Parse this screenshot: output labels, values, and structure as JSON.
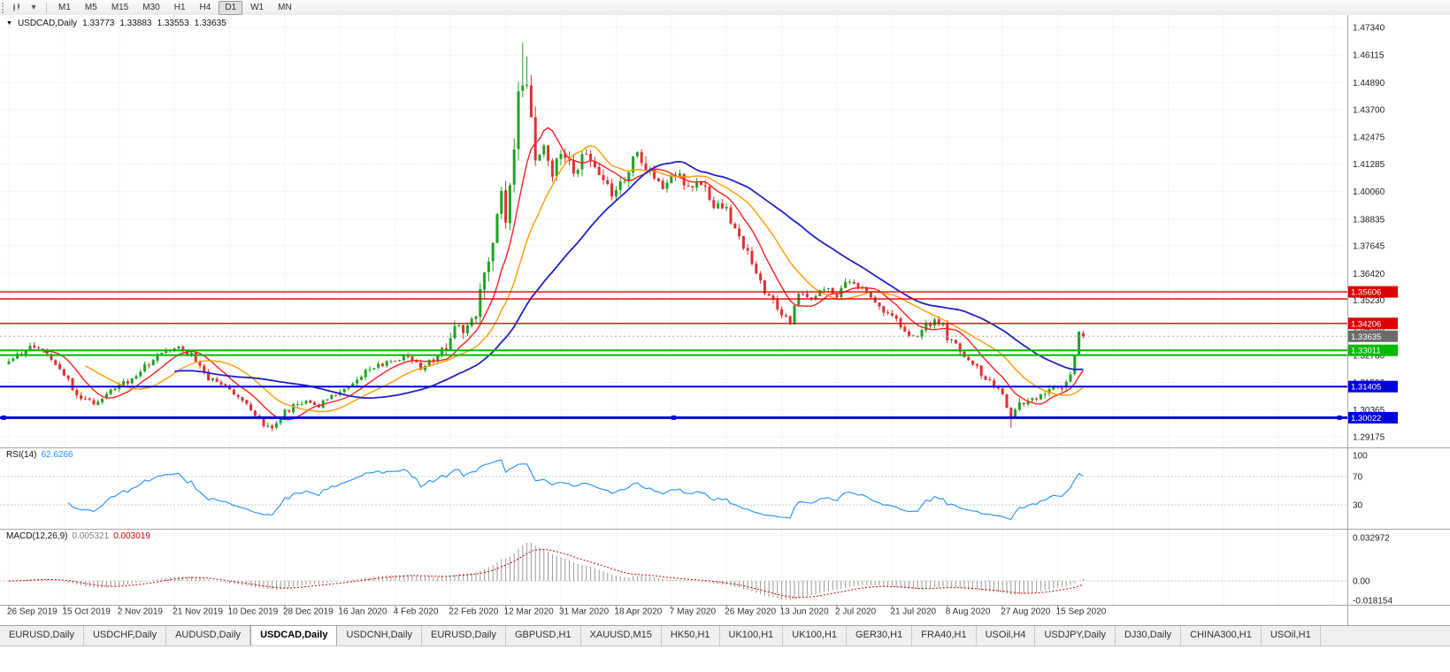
{
  "toolbar": {
    "icons": [
      "chart-type-icon",
      "dropdown-icon"
    ],
    "timeframes": [
      "M1",
      "M5",
      "M15",
      "M30",
      "H1",
      "H4",
      "D1",
      "W1",
      "MN"
    ],
    "active_timeframe": "D1"
  },
  "chart": {
    "symbol_label": "USDCAD,Daily",
    "ohlc": {
      "open": "1.33773",
      "high": "1.33883",
      "low": "1.33553",
      "close": "1.33635"
    },
    "price_axis_labels": [
      "1.47340",
      "1.46115",
      "1.44890",
      "1.43700",
      "1.42475",
      "1.41285",
      "1.40060",
      "1.38835",
      "1.37645",
      "1.36420",
      "1.35230",
      "1.34005",
      "1.32780",
      "1.31590",
      "1.30365",
      "1.29175"
    ],
    "current_price": {
      "label": "1.33635",
      "price": 1.33635,
      "badge_color": "#6b6b6b"
    },
    "hlines": [
      {
        "price": 1.35606,
        "label": "1.35606",
        "color": "#dd0000",
        "width": 1.4
      },
      {
        "price": 1.3529,
        "color": "#dd0000",
        "width": 1.4
      },
      {
        "price": 1.34206,
        "label": "1.34206",
        "color": "#dd0000",
        "width": 1.4
      },
      {
        "price": 1.33011,
        "label": "1.33011",
        "color": "#00bb00",
        "width": 2
      },
      {
        "price": 1.328,
        "color": "#00bb00",
        "width": 2
      },
      {
        "price": 1.31405,
        "label": "1.31405",
        "color": "#0000dd",
        "width": 2
      },
      {
        "price": 1.30022,
        "label": "1.30022",
        "color": "#0000dd",
        "width": 3,
        "handles": true
      }
    ],
    "date_labels": [
      "26 Sep 2019",
      "15 Oct 2019",
      "2 Nov 2019",
      "21 Nov 2019",
      "10 Dec 2019",
      "28 Dec 2019",
      "16 Jan 2020",
      "4 Feb 2020",
      "22 Feb 2020",
      "12 Mar 2020",
      "31 Mar 2020",
      "18 Apr 2020",
      "7 May 2020",
      "26 May 2020",
      "13 Jun 2020",
      "2 Jul 2020",
      "21 Jul 2020",
      "8 Aug 2020",
      "27 Aug 2020",
      "15 Sep 2020"
    ]
  },
  "chart_data": {
    "type": "candlestick",
    "symbol": "USDCAD",
    "timeframe": "Daily",
    "price_axis_range": [
      1.29175,
      1.4734
    ],
    "price_path": [
      [
        0,
        1.3245
      ],
      [
        3,
        1.3292
      ],
      [
        6,
        1.332
      ],
      [
        9,
        1.3288
      ],
      [
        13,
        1.32
      ],
      [
        16,
        1.3105
      ],
      [
        20,
        1.3058
      ],
      [
        24,
        1.312
      ],
      [
        28,
        1.3165
      ],
      [
        32,
        1.3228
      ],
      [
        36,
        1.3288
      ],
      [
        40,
        1.3308
      ],
      [
        43,
        1.3282
      ],
      [
        47,
        1.3175
      ],
      [
        51,
        1.3152
      ],
      [
        55,
        1.3082
      ],
      [
        59,
        1.2985
      ],
      [
        62,
        1.2958
      ],
      [
        65,
        1.303
      ],
      [
        69,
        1.3072
      ],
      [
        73,
        1.3058
      ],
      [
        77,
        1.3105
      ],
      [
        81,
        1.3162
      ],
      [
        85,
        1.322
      ],
      [
        89,
        1.3242
      ],
      [
        93,
        1.3278
      ],
      [
        97,
        1.3225
      ],
      [
        100,
        1.3262
      ],
      [
        103,
        1.3325
      ],
      [
        105,
        1.3428
      ],
      [
        107,
        1.3392
      ],
      [
        109,
        1.3418
      ],
      [
        111,
        1.3528
      ],
      [
        113,
        1.3688
      ],
      [
        114,
        1.3808
      ],
      [
        115,
        1.3928
      ],
      [
        116,
        1.4048
      ],
      [
        117,
        1.3892
      ],
      [
        118,
        1.4008
      ],
      [
        119,
        1.4238
      ],
      [
        120,
        1.4448
      ],
      [
        121,
        1.4452
      ],
      [
        122,
        1.4488
      ],
      [
        123,
        1.4328
      ],
      [
        124,
        1.4108
      ],
      [
        126,
        1.4242
      ],
      [
        128,
        1.4092
      ],
      [
        130,
        1.4168
      ],
      [
        133,
        1.4098
      ],
      [
        136,
        1.4182
      ],
      [
        139,
        1.4088
      ],
      [
        142,
        1.3982
      ],
      [
        145,
        1.4072
      ],
      [
        148,
        1.4178
      ],
      [
        151,
        1.4098
      ],
      [
        154,
        1.4012
      ],
      [
        157,
        1.4088
      ],
      [
        160,
        1.4032
      ],
      [
        163,
        1.4052
      ],
      [
        166,
        1.3952
      ],
      [
        169,
        1.3918
      ],
      [
        172,
        1.3812
      ],
      [
        175,
        1.3682
      ],
      [
        178,
        1.3562
      ],
      [
        181,
        1.3492
      ],
      [
        184,
        1.3422
      ],
      [
        186,
        1.3558
      ],
      [
        189,
        1.3528
      ],
      [
        192,
        1.3582
      ],
      [
        195,
        1.3552
      ],
      [
        198,
        1.3608
      ],
      [
        200,
        1.3588
      ],
      [
        202,
        1.3552
      ],
      [
        204,
        1.3508
      ],
      [
        206,
        1.3472
      ],
      [
        208,
        1.3448
      ],
      [
        210,
        1.3412
      ],
      [
        212,
        1.3372
      ],
      [
        214,
        1.3358
      ],
      [
        216,
        1.3408
      ],
      [
        218,
        1.3432
      ],
      [
        220,
        1.3408
      ],
      [
        221,
        1.3352
      ],
      [
        223,
        1.3322
      ],
      [
        226,
        1.3252
      ],
      [
        228,
        1.3222
      ],
      [
        230,
        1.3182
      ],
      [
        232,
        1.3152
      ],
      [
        234,
        1.3102
      ],
      [
        236,
        1.2992
      ],
      [
        238,
        1.3062
      ],
      [
        240,
        1.3088
      ],
      [
        242,
        1.3068
      ],
      [
        244,
        1.3108
      ],
      [
        246,
        1.3138
      ],
      [
        248,
        1.3118
      ],
      [
        249,
        1.3158
      ],
      [
        250,
        1.3198
      ],
      [
        251,
        1.3268
      ],
      [
        252,
        1.3378
      ],
      [
        253,
        1.33635
      ]
    ],
    "candle_overrides": {
      "121": {
        "h": 1.4668
      },
      "122": {
        "h": 1.4605
      },
      "236": {
        "l": 1.2958
      },
      "253": {
        "o": 1.33773,
        "h": 1.33883,
        "l": 1.33553,
        "c": 1.33635
      }
    },
    "colors": {
      "up": "#21a126",
      "down": "#e03030",
      "grid": "#e5e5e5"
    },
    "moving_averages": [
      {
        "period": 9,
        "color": "#ff2020",
        "width": 1.4
      },
      {
        "period": 19,
        "color": "#ff9c00",
        "width": 1.4
      },
      {
        "period": 40,
        "color": "#2222cc",
        "width": 1.8
      }
    ],
    "indicators": {
      "rsi": {
        "label": "RSI(14)",
        "value": "62.6266",
        "period": 14,
        "levels": [
          100,
          70,
          30
        ],
        "color": "#1e90ff"
      },
      "macd": {
        "label": "MACD(12,26,9)",
        "fast": 12,
        "slow": 26,
        "signal": 9,
        "values": [
          "0.005321",
          "0.003019"
        ],
        "scale_labels": [
          "0.032972",
          "0.00",
          "-0.018154"
        ],
        "hist_color": "#9a9a9a",
        "signal_color": "#d40000"
      }
    }
  },
  "tabs": {
    "labels": [
      "EURUSD,Daily",
      "USDCHF,Daily",
      "AUDUSD,Daily",
      "USDCAD,Daily",
      "USDCNH,Daily",
      "EURUSD,Daily",
      "GBPUSD,H1",
      "XAUUSD,M15",
      "HK50,H1",
      "UK100,H1",
      "UK100,H1",
      "GER30,H1",
      "FRA40,H1",
      "USOil,H4",
      "USDJPY,Daily",
      "DJ30,Daily",
      "CHINA300,H1",
      "USOil,H1"
    ],
    "active_index": 3
  }
}
